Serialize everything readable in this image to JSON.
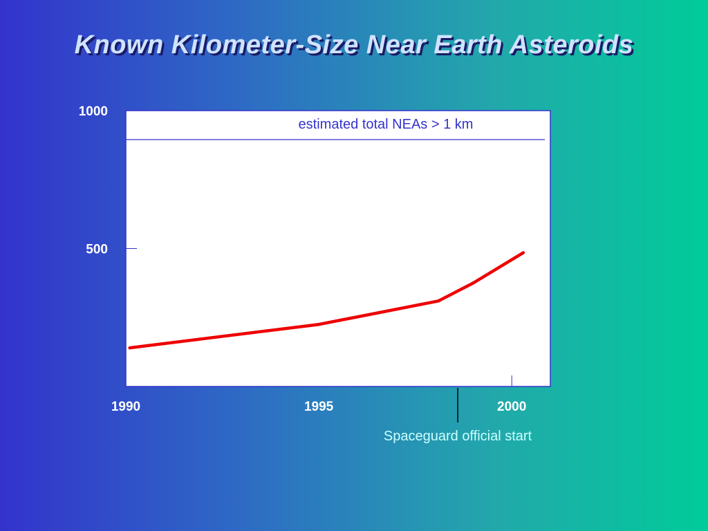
{
  "title": "Known Kilometer-Size Near Earth Asteroids",
  "colors": {
    "series": "#ee0000",
    "reference_line": "#3333cc",
    "axis": "#3333cc",
    "plot_bg": "#ffffff",
    "marker": "#000000",
    "annotation_text": "#ccffff"
  },
  "chart_data": {
    "type": "line",
    "title": "Known Kilometer-Size Near Earth Asteroids",
    "xlabel": "",
    "ylabel": "",
    "xlim": [
      1990,
      2001
    ],
    "ylim": [
      0,
      1000
    ],
    "x_ticks": [
      1990,
      1995,
      2000
    ],
    "x_tick_labels": [
      "1990",
      "1995",
      "2000"
    ],
    "y_ticks": [
      500,
      1000
    ],
    "y_tick_labels": [
      "500",
      "1000"
    ],
    "grid": false,
    "series": [
      {
        "x": [
          1990.1,
          1995.0,
          1998.1,
          1999.0,
          2000.3
        ],
        "y": [
          140,
          225,
          310,
          375,
          485
        ]
      }
    ],
    "reference_line": {
      "y": 895,
      "label": "estimated total NEAs > 1 km"
    },
    "marker": {
      "x": 1998.6,
      "label": "Spaceguard official start"
    }
  }
}
